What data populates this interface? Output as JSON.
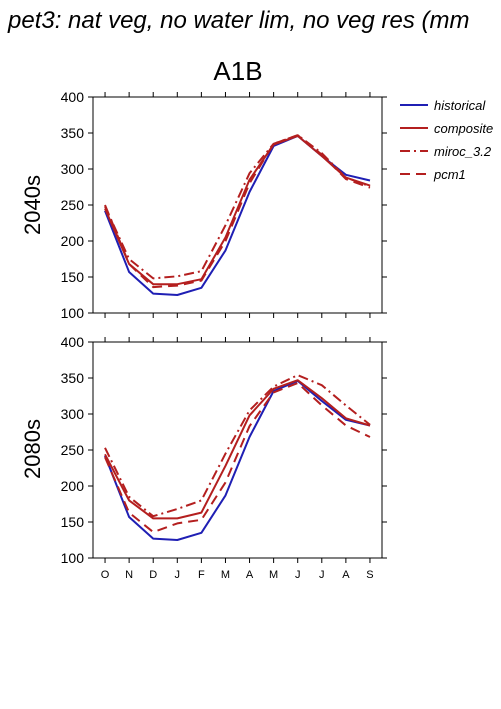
{
  "title": "pet3: nat veg, no water lim, no veg res (mm",
  "scenario": "A1B",
  "months": [
    "O",
    "N",
    "D",
    "J",
    "F",
    "M",
    "A",
    "M",
    "J",
    "J",
    "A",
    "S"
  ],
  "ylim": [
    100,
    400
  ],
  "yticks": [
    "100",
    "150",
    "200",
    "250",
    "300",
    "350",
    "400"
  ],
  "styles": {
    "historical": {
      "color": "#1f1fb4",
      "dash": ""
    },
    "composite": {
      "color": "#b41f1f",
      "dash": ""
    },
    "miroc_3.2": {
      "color": "#b41f1f",
      "dash": "10,4,2,4"
    },
    "pcm1": {
      "color": "#b41f1f",
      "dash": "10,6"
    }
  },
  "legend": [
    "historical",
    "composite",
    "miroc_3.2",
    "pcm1"
  ],
  "chart_data": [
    {
      "type": "line",
      "panel": "2040s",
      "categories": [
        "O",
        "N",
        "D",
        "J",
        "F",
        "M",
        "A",
        "M",
        "J",
        "J",
        "A",
        "S"
      ],
      "ylim": [
        100,
        400
      ],
      "series": [
        {
          "name": "historical",
          "values": [
            242,
            157,
            127,
            125,
            135,
            187,
            268,
            332,
            346,
            318,
            292,
            284
          ]
        },
        {
          "name": "composite",
          "values": [
            245,
            168,
            140,
            140,
            147,
            205,
            285,
            334,
            346,
            318,
            288,
            277
          ]
        },
        {
          "name": "miroc_3.2",
          "values": [
            248,
            175,
            148,
            151,
            158,
            222,
            294,
            335,
            347,
            322,
            288,
            276
          ]
        },
        {
          "name": "pcm1",
          "values": [
            250,
            168,
            136,
            138,
            145,
            200,
            280,
            335,
            347,
            320,
            286,
            274
          ]
        }
      ]
    },
    {
      "type": "line",
      "panel": "2080s",
      "categories": [
        "O",
        "N",
        "D",
        "J",
        "F",
        "M",
        "A",
        "M",
        "J",
        "J",
        "A",
        "S"
      ],
      "ylim": [
        100,
        400
      ],
      "series": [
        {
          "name": "historical",
          "values": [
            242,
            157,
            127,
            125,
            135,
            187,
            268,
            332,
            346,
            318,
            292,
            284
          ]
        },
        {
          "name": "composite",
          "values": [
            244,
            180,
            155,
            155,
            163,
            228,
            298,
            335,
            347,
            322,
            294,
            284
          ]
        },
        {
          "name": "miroc_3.2",
          "values": [
            253,
            185,
            158,
            168,
            180,
            245,
            305,
            338,
            354,
            340,
            312,
            285
          ]
        },
        {
          "name": "pcm1",
          "values": [
            240,
            163,
            136,
            148,
            153,
            205,
            283,
            330,
            343,
            312,
            284,
            268
          ]
        }
      ]
    }
  ]
}
